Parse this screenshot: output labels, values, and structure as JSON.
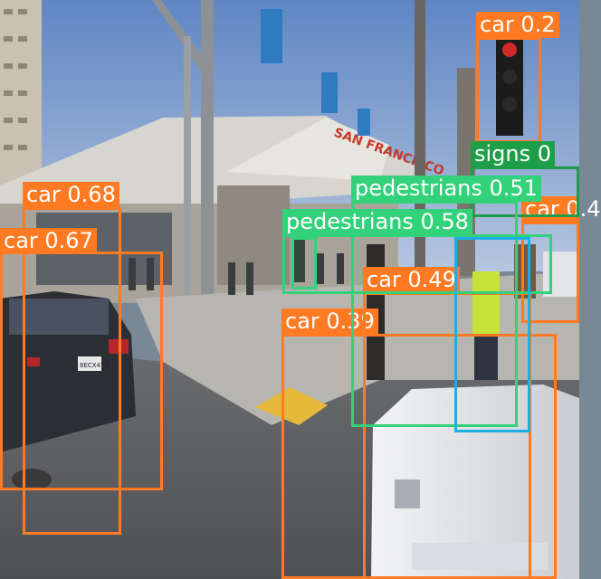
{
  "colors": {
    "car": "#ff7a22",
    "pedestrians": "#33d17a",
    "signs": "#1f9e4a",
    "unlabeled": "#1ab0e6"
  },
  "scene": {
    "building_sign": "SAN FRANCISCO",
    "vehicle_plate": "8ECX474"
  },
  "detections": [
    {
      "id": "car-068",
      "label": "car 0.68",
      "class": "car"
    },
    {
      "id": "car-067",
      "label": "car 0.67",
      "class": "car"
    },
    {
      "id": "car-039",
      "label": "car 0.39",
      "class": "car"
    },
    {
      "id": "car-049",
      "label": "car 0.49",
      "class": "car"
    },
    {
      "id": "car-right",
      "label": "car 0.4",
      "class": "car"
    },
    {
      "id": "car-signal",
      "label": "car 0.2",
      "class": "car"
    },
    {
      "id": "signs",
      "label": "signs 0",
      "class": "signs"
    },
    {
      "id": "ped-051",
      "label": "pedestrians 0.51",
      "class": "pedestrians"
    },
    {
      "id": "ped-058",
      "label": "pedestrians 0.58",
      "class": "pedestrians"
    },
    {
      "id": "ped-small",
      "label": "",
      "class": "pedestrians"
    },
    {
      "id": "blue-box",
      "label": "",
      "class": "unlabeled"
    }
  ]
}
